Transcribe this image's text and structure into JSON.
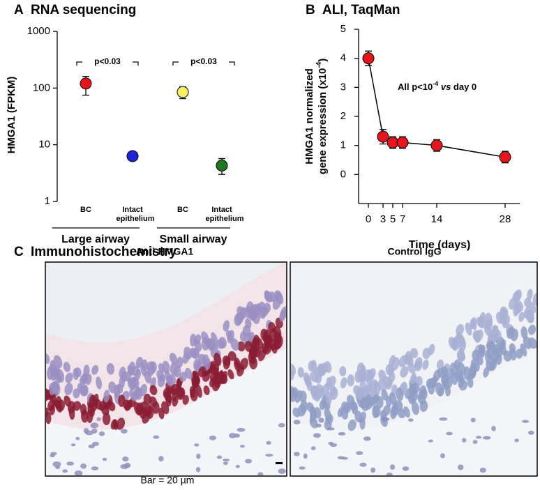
{
  "chart_data": [
    {
      "type": "scatter",
      "label": "A",
      "title": "RNA sequencing",
      "y_label": "HMGA1 (FPKM)",
      "categories": [
        "BC",
        "Intact epithelium",
        "BC",
        "Intact epithelium"
      ],
      "groups": [
        "Large airway",
        "Small airway"
      ],
      "values": [
        120,
        6.3,
        85,
        4.3
      ],
      "err_low": [
        75,
        5.5,
        65,
        3.0
      ],
      "err_high": [
        160,
        7.3,
        105,
        5.7
      ],
      "colors": [
        "#e8141b",
        "#1c24d8",
        "#f4f060",
        "#1e7a1e"
      ],
      "annotations": [
        "p<0.03",
        "p<0.03"
      ],
      "log_scale": true,
      "ylim": [
        1,
        1000
      ],
      "yticks": [
        1,
        10,
        100,
        1000
      ]
    },
    {
      "type": "line",
      "label": "B",
      "title": "ALI, TaqMan",
      "y_label": [
        "HMGA1 normalized",
        "gene expression (x10",
        "-4",
        ")"
      ],
      "x_label": "Time (days)",
      "annotation": [
        "All p<10",
        "-4",
        " vs ",
        "day 0"
      ],
      "x": [
        0,
        3,
        5,
        7,
        14,
        28
      ],
      "values": [
        4.0,
        1.3,
        1.1,
        1.1,
        1.0,
        0.6
      ],
      "errors": [
        0.25,
        0.25,
        0.2,
        0.2,
        0.2,
        0.2
      ],
      "color": "#e8141b",
      "xlim": [
        -2,
        31
      ],
      "xticks": [
        0,
        3,
        5,
        7,
        14,
        28
      ],
      "ylim": [
        -1,
        5
      ],
      "yticks": [
        0,
        1,
        2,
        3,
        4,
        5
      ]
    }
  ],
  "panel_c": {
    "label": "C",
    "title": "Immunohistochemistry",
    "images": [
      "Anti-HMGA1",
      "Control IgG"
    ],
    "scale_bar": "Bar = 20 µm"
  }
}
